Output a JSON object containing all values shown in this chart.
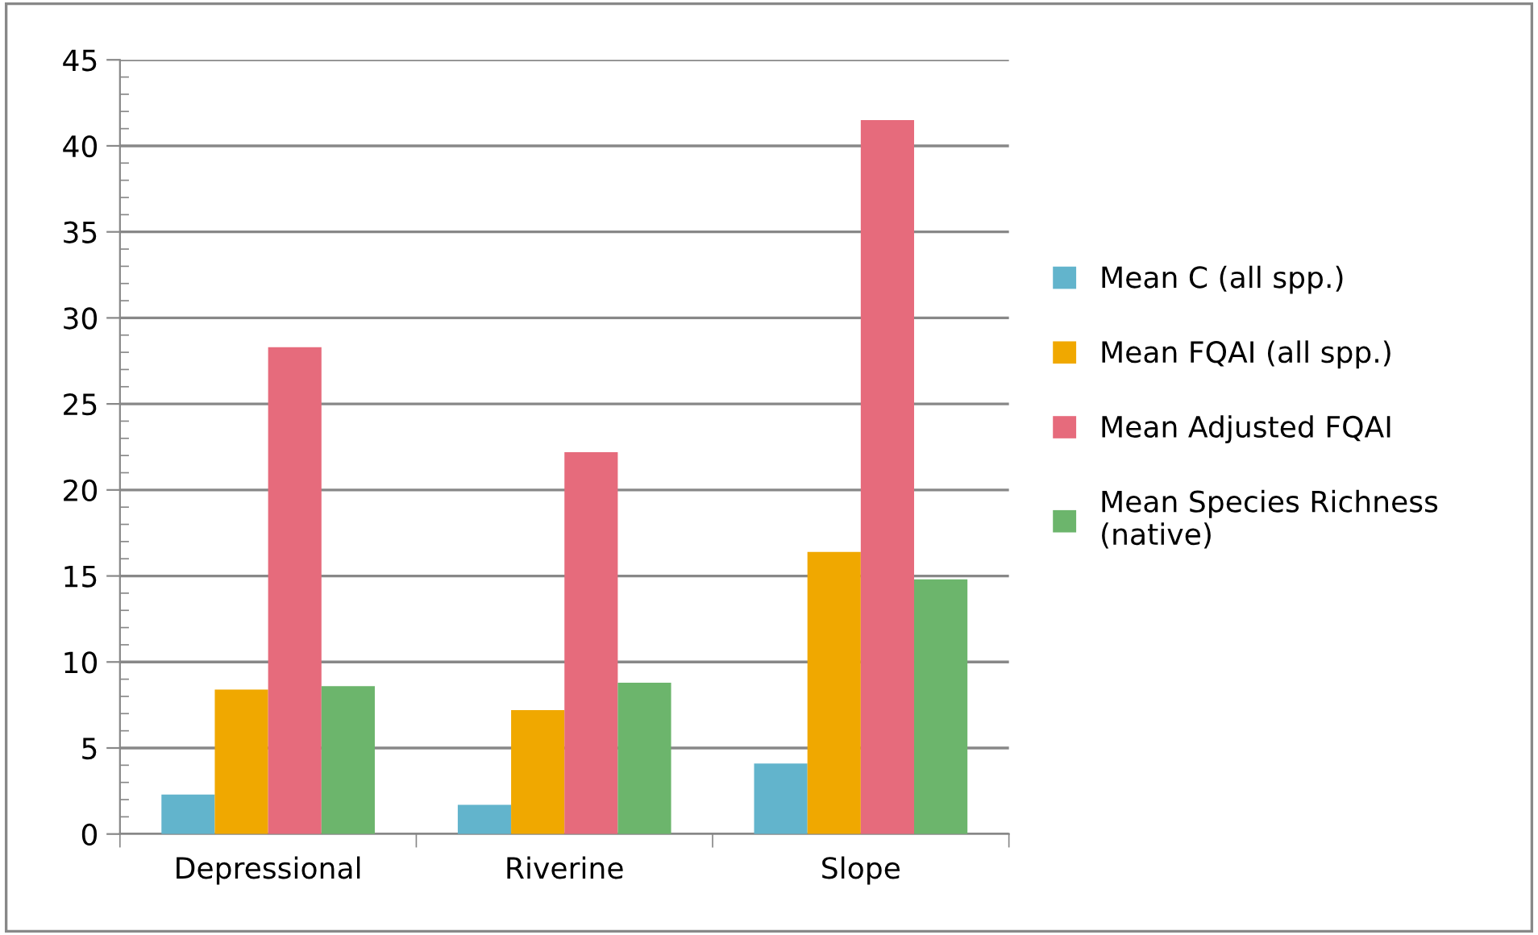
{
  "chart_data": {
    "type": "bar",
    "categories": [
      "Depressional",
      "Riverine",
      "Slope"
    ],
    "series": [
      {
        "name": "Mean C (all spp.)",
        "color": "#62b4cc",
        "values": [
          2.3,
          1.7,
          4.1
        ]
      },
      {
        "name": "Mean FQAI (all spp.)",
        "color": "#f0a800",
        "values": [
          8.4,
          7.2,
          16.4
        ]
      },
      {
        "name": "Mean Adjusted FQAI",
        "color": "#e66b7c",
        "values": [
          28.3,
          22.2,
          41.5
        ]
      },
      {
        "name": "Mean Species Richness (native)",
        "color": "#6cb56c",
        "values": [
          8.6,
          8.8,
          14.8
        ]
      }
    ],
    "ylim": [
      0,
      45
    ],
    "yticks": [
      0,
      5,
      10,
      15,
      20,
      25,
      30,
      35,
      40,
      45
    ],
    "grid": "y",
    "legend": "right"
  }
}
